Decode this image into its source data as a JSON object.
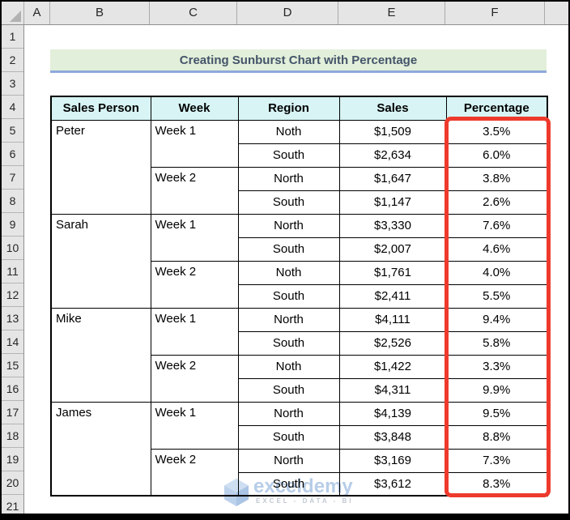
{
  "sheet": {
    "column_headers": [
      "A",
      "B",
      "C",
      "D",
      "E",
      "F"
    ],
    "row_headers": [
      "1",
      "2",
      "3",
      "4",
      "5",
      "6",
      "7",
      "8",
      "9",
      "10",
      "11",
      "12",
      "13",
      "14",
      "15",
      "16",
      "17",
      "18",
      "19",
      "20",
      "21"
    ],
    "title_banner": {
      "text": "Creating Sunburst Chart with Percentage"
    },
    "table": {
      "headers": [
        "Sales Person",
        "Week",
        "Region",
        "Sales",
        "Percentage"
      ],
      "rows": [
        {
          "person": "Peter",
          "week": "Week 1",
          "region": "Noth",
          "sales": "$1,509",
          "percentage": "3.5%"
        },
        {
          "region": "South",
          "sales": "$2,634",
          "percentage": "6.0%"
        },
        {
          "week": "Week 2",
          "region": "North",
          "sales": "$1,647",
          "percentage": "3.8%"
        },
        {
          "region": "South",
          "sales": "$1,147",
          "percentage": "2.6%"
        },
        {
          "person": "Sarah",
          "week": "Week 1",
          "region": "North",
          "sales": "$3,330",
          "percentage": "7.6%"
        },
        {
          "region": "South",
          "sales": "$2,007",
          "percentage": "4.6%"
        },
        {
          "week": "Week 2",
          "region": "Noth",
          "sales": "$1,761",
          "percentage": "4.0%"
        },
        {
          "region": "South",
          "sales": "$2,411",
          "percentage": "5.5%"
        },
        {
          "person": "Mike",
          "week": "Week 1",
          "region": "North",
          "sales": "$4,111",
          "percentage": "9.4%"
        },
        {
          "region": "South",
          "sales": "$2,526",
          "percentage": "5.8%"
        },
        {
          "week": "Week 2",
          "region": "Noth",
          "sales": "$1,422",
          "percentage": "3.3%"
        },
        {
          "region": "South",
          "sales": "$4,311",
          "percentage": "9.9%"
        },
        {
          "person": "James",
          "week": "Week 1",
          "region": "North",
          "sales": "$4,139",
          "percentage": "9.5%"
        },
        {
          "region": "South",
          "sales": "$3,848",
          "percentage": "8.8%"
        },
        {
          "week": "Week 2",
          "region": "North",
          "sales": "$3,169",
          "percentage": "7.3%"
        },
        {
          "region": "South",
          "sales": "$3,612",
          "percentage": "8.3%"
        }
      ]
    },
    "watermark": {
      "brand": "exceldemy",
      "tagline": "EXCEL - DATA - BI"
    },
    "colors": {
      "banner_bg": "#E2EFDA",
      "banner_underline": "#8EA9DB",
      "banner_text": "#44546A",
      "table_header_fill": "#D8F4F5",
      "highlight_border": "#EE3A2C",
      "watermark_blue": "#B7CDE8"
    }
  }
}
